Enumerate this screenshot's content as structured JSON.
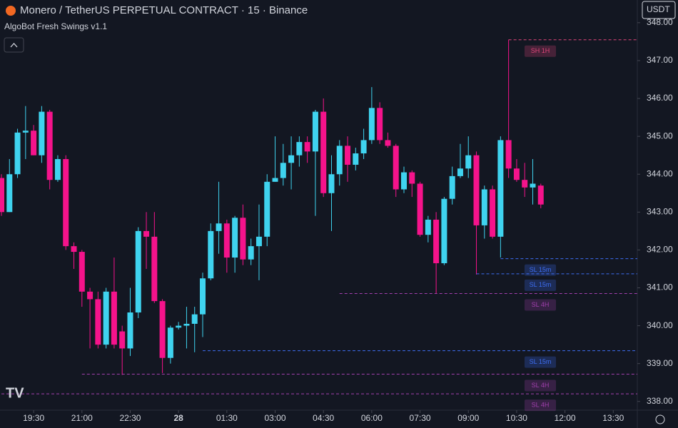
{
  "chart_data": {
    "type": "candlestick",
    "title": "Monero / TetherUS PERPETUAL CONTRACT · 15 · Binance",
    "indicator": "AlgoBot Fresh Swings v1.1",
    "currency": "USDT",
    "up_color": "#3fd3ef",
    "down_color": "#f5138b",
    "open": [
      343.9,
      343.0,
      344.0,
      345.1,
      345.15,
      344.5,
      345.65,
      343.85,
      344.4,
      342.1,
      341.95,
      340.9,
      340.7,
      339.5,
      340.9,
      339.85,
      339.4,
      340.35,
      342.5,
      342.35,
      340.65,
      339.15,
      339.95,
      340.0,
      340.05,
      340.3,
      341.25,
      342.5,
      342.7,
      341.8,
      342.85,
      341.75,
      342.1,
      342.35,
      343.8,
      343.9,
      344.3,
      344.5,
      344.85,
      344.6,
      345.65,
      343.5,
      344.0,
      344.75,
      344.25,
      344.55,
      344.9,
      345.75,
      344.9,
      344.75,
      343.6,
      344.05,
      343.75,
      342.4,
      342.8,
      341.65,
      343.35,
      343.95,
      344.15,
      344.5,
      342.65,
      343.6,
      342.35,
      344.9,
      344.15,
      343.85,
      343.65,
      343.7
    ],
    "high": [
      344.0,
      344.4,
      345.2,
      345.8,
      345.3,
      345.8,
      345.7,
      344.5,
      344.5,
      342.2,
      342.0,
      341.0,
      340.9,
      341.0,
      341.8,
      340.0,
      341.0,
      342.6,
      343.0,
      343.0,
      340.7,
      340.0,
      340.1,
      340.5,
      340.5,
      341.4,
      342.7,
      343.8,
      342.8,
      342.9,
      343.2,
      342.3,
      343.2,
      344.0,
      345.0,
      344.8,
      345.0,
      345.0,
      345.0,
      345.7,
      346.0,
      344.5,
      344.9,
      345.0,
      344.7,
      345.2,
      346.3,
      345.9,
      345.1,
      344.8,
      344.2,
      344.1,
      343.8,
      342.9,
      343.0,
      343.4,
      344.2,
      344.8,
      345.0,
      344.6,
      343.7,
      343.7,
      345.0,
      347.55,
      344.4,
      344.3,
      344.4,
      343.75
    ],
    "low": [
      342.9,
      343.0,
      343.9,
      344.4,
      344.5,
      344.3,
      343.6,
      343.8,
      342.0,
      341.5,
      340.5,
      339.4,
      339.4,
      339.4,
      339.4,
      338.7,
      339.2,
      340.2,
      341.5,
      340.6,
      338.75,
      339.0,
      339.9,
      339.4,
      339.3,
      339.7,
      341.2,
      341.9,
      341.4,
      341.4,
      341.6,
      341.6,
      341.2,
      342.1,
      343.8,
      343.7,
      343.6,
      344.2,
      344.3,
      342.9,
      343.4,
      342.5,
      343.7,
      343.8,
      344.1,
      344.4,
      344.8,
      344.8,
      344.7,
      343.4,
      343.5,
      343.4,
      342.35,
      342.2,
      340.85,
      341.6,
      343.2,
      343.9,
      343.9,
      341.35,
      342.3,
      342.3,
      341.8,
      343.9,
      343.8,
      343.4,
      343.2,
      343.1
    ],
    "close": [
      343.0,
      344.0,
      345.1,
      345.15,
      344.5,
      345.65,
      343.85,
      344.4,
      342.1,
      341.95,
      340.9,
      340.7,
      339.5,
      340.9,
      339.5,
      339.4,
      340.35,
      342.5,
      342.35,
      340.65,
      339.15,
      339.95,
      340.0,
      340.05,
      340.3,
      341.25,
      342.5,
      342.7,
      341.8,
      342.85,
      341.75,
      342.1,
      342.35,
      343.8,
      343.9,
      344.3,
      344.5,
      344.85,
      344.6,
      345.65,
      343.5,
      344.0,
      344.75,
      344.25,
      344.55,
      344.9,
      345.75,
      344.9,
      344.75,
      343.6,
      344.05,
      343.75,
      342.4,
      342.8,
      341.65,
      343.35,
      343.95,
      344.15,
      344.5,
      342.65,
      343.6,
      342.35,
      344.9,
      344.15,
      343.85,
      343.65,
      343.75,
      343.2
    ],
    "levels": [
      {
        "label": "SH 1H",
        "value": 347.55,
        "from": 63,
        "color": "#e0457a"
      },
      {
        "label": "SL 15m",
        "value": 341.77,
        "from": 62,
        "color": "#3d6df2"
      },
      {
        "label": "SL 15m",
        "value": 341.37,
        "from": 59,
        "color": "#3d6df2"
      },
      {
        "label": "SL 4H",
        "value": 340.85,
        "from": 42,
        "color": "#a23fae"
      },
      {
        "label": "SL 15m",
        "value": 339.34,
        "from": 25,
        "color": "#3d6df2"
      },
      {
        "label": "SL 4H",
        "value": 338.72,
        "from": 10,
        "color": "#a23fae"
      },
      {
        "label": "SL 4H",
        "value": 338.2,
        "from": 0,
        "color": "#a23fae"
      }
    ],
    "ylim": [
      337.77,
      348.6
    ],
    "yticks": [
      {
        "value": 338,
        "label": "338.00"
      },
      {
        "value": 339,
        "label": "339.00"
      },
      {
        "value": 340,
        "label": "340.00"
      },
      {
        "value": 341,
        "label": "341.00"
      },
      {
        "value": 342,
        "label": "342.00"
      },
      {
        "value": 343,
        "label": "343.00"
      },
      {
        "value": 344,
        "label": "344.00"
      },
      {
        "value": 345,
        "label": "345.00"
      },
      {
        "value": 346,
        "label": "346.00"
      },
      {
        "value": 347,
        "label": "347.00"
      },
      {
        "value": 348,
        "label": "348.00"
      }
    ],
    "xticks": [
      {
        "value": 4,
        "label": "19:30"
      },
      {
        "value": 10,
        "label": "21:00"
      },
      {
        "value": 16,
        "label": "22:30"
      },
      {
        "value": 22,
        "label": "28"
      },
      {
        "value": 28,
        "label": "01:30"
      },
      {
        "value": 34,
        "label": "03:00"
      },
      {
        "value": 40,
        "label": "04:30"
      },
      {
        "value": 46,
        "label": "06:00"
      },
      {
        "value": 52,
        "label": "07:30"
      },
      {
        "value": 58,
        "label": "09:00"
      },
      {
        "value": 64,
        "label": "10:30"
      },
      {
        "value": 70,
        "label": "12:00"
      },
      {
        "value": 76,
        "label": "13:30"
      }
    ]
  }
}
